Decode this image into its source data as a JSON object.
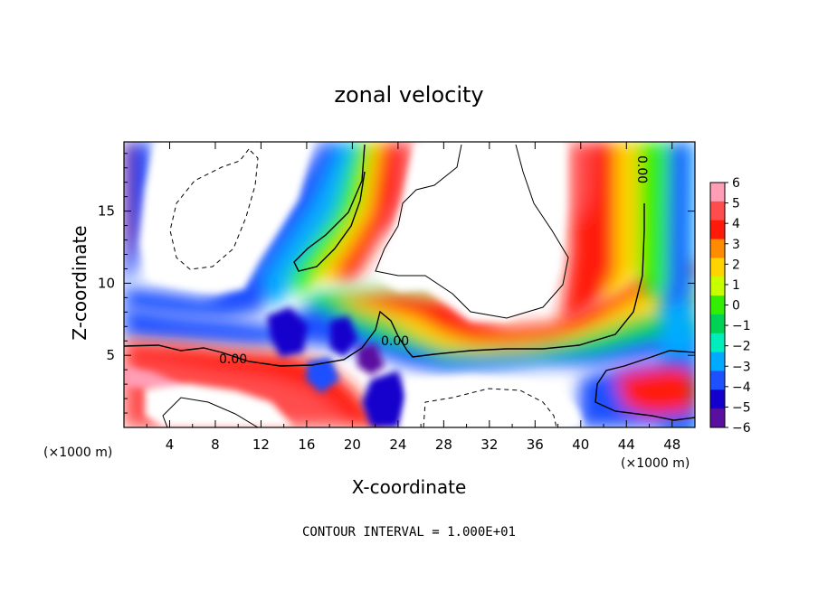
{
  "chart_data": {
    "type": "heatmap",
    "title": "zonal velocity",
    "xlabel": "X-coordinate",
    "ylabel": "Z-coordinate",
    "x_unit": "(×1000 m)",
    "y_unit": "(×1000 m)",
    "xlim": [
      0,
      50
    ],
    "ylim": [
      0,
      19.8
    ],
    "x_ticks": [
      4,
      8,
      12,
      16,
      20,
      24,
      28,
      32,
      36,
      40,
      44,
      48
    ],
    "y_ticks": [
      5,
      10,
      15
    ],
    "colorbar": {
      "ticks": [
        6,
        5,
        4,
        3,
        2,
        1,
        0,
        -1,
        -2,
        -3,
        -4,
        -5,
        -6
      ],
      "labels": [
        "6",
        "5",
        "4",
        "3",
        "2",
        "1",
        "0",
        "−1",
        "−2",
        "−3",
        "−4",
        "−5",
        "−6"
      ],
      "colors": [
        "#ff9eb5",
        "#ff4d4d",
        "#ff1a0a",
        "#ff8c00",
        "#ffd400",
        "#c8ff00",
        "#33ee00",
        "#00d255",
        "#00eebb",
        "#00aaff",
        "#1e50ff",
        "#1400cc",
        "#5a0fa0"
      ]
    },
    "contour_interval": "CONTOUR INTERVAL = 1.000E+01",
    "contour_labels": [
      "0.00",
      "0.00",
      "0.00"
    ]
  }
}
